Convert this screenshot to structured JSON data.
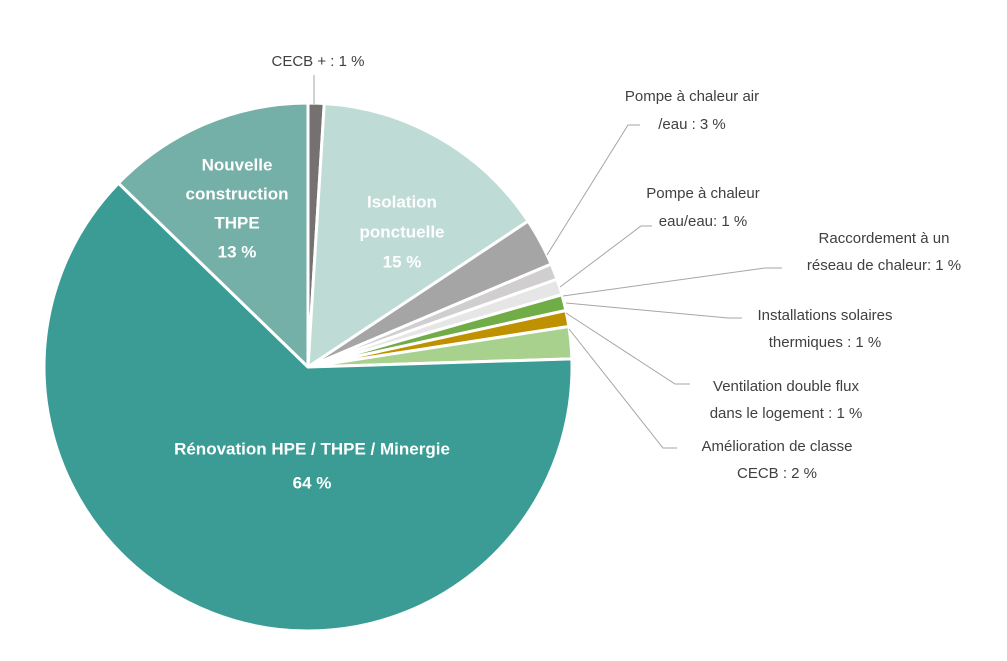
{
  "chart_data": {
    "type": "pie",
    "slices": [
      {
        "name": "CECB +",
        "label_lines": [
          "CECB + : 1 %"
        ],
        "value": 1,
        "color": "#767171"
      },
      {
        "name": "Isolation ponctuelle",
        "label_lines": [
          "Isolation",
          "ponctuelle",
          "15 %"
        ],
        "value": 15,
        "color": "#bfdbd5"
      },
      {
        "name": "Pompe à chaleur air/eau",
        "label_lines": [
          "Pompe à chaleur air",
          "/eau :  3 %"
        ],
        "value": 3,
        "color": "#a5a5a5"
      },
      {
        "name": "Pompe à chaleur eau/eau",
        "label_lines": [
          "Pompe à chaleur",
          "eau/eau: 1 %"
        ],
        "value": 1,
        "color": "#d0cece"
      },
      {
        "name": "Raccordement à un réseau de chaleur",
        "label_lines": [
          "Raccordement à un",
          "réseau de chaleur: 1 %"
        ],
        "value": 1,
        "color": "#e7e6e6"
      },
      {
        "name": "Installations solaires thermiques",
        "label_lines": [
          "Installations solaires",
          "thermiques : 1 %"
        ],
        "value": 1,
        "color": "#70ad47"
      },
      {
        "name": "Ventilation double flux dans le logement",
        "label_lines": [
          "Ventilation double flux",
          "dans le logement : 1 %"
        ],
        "value": 1,
        "color": "#bf9000"
      },
      {
        "name": "Amélioration de classe CECB",
        "label_lines": [
          "Amélioration de classe",
          "CECB : 2 %"
        ],
        "value": 2,
        "color": "#a9d18e"
      },
      {
        "name": "Rénovation HPE / THPE / Minergie",
        "label_lines": [
          "Rénovation HPE / THPE / Minergie",
          "64 %"
        ],
        "value": 64,
        "color": "#3a9c94"
      },
      {
        "name": "Nouvelle construction THPE",
        "label_lines": [
          "Nouvelle",
          "construction",
          "THPE",
          "13 %"
        ],
        "value": 13,
        "color": "#74b0a8"
      }
    ]
  }
}
